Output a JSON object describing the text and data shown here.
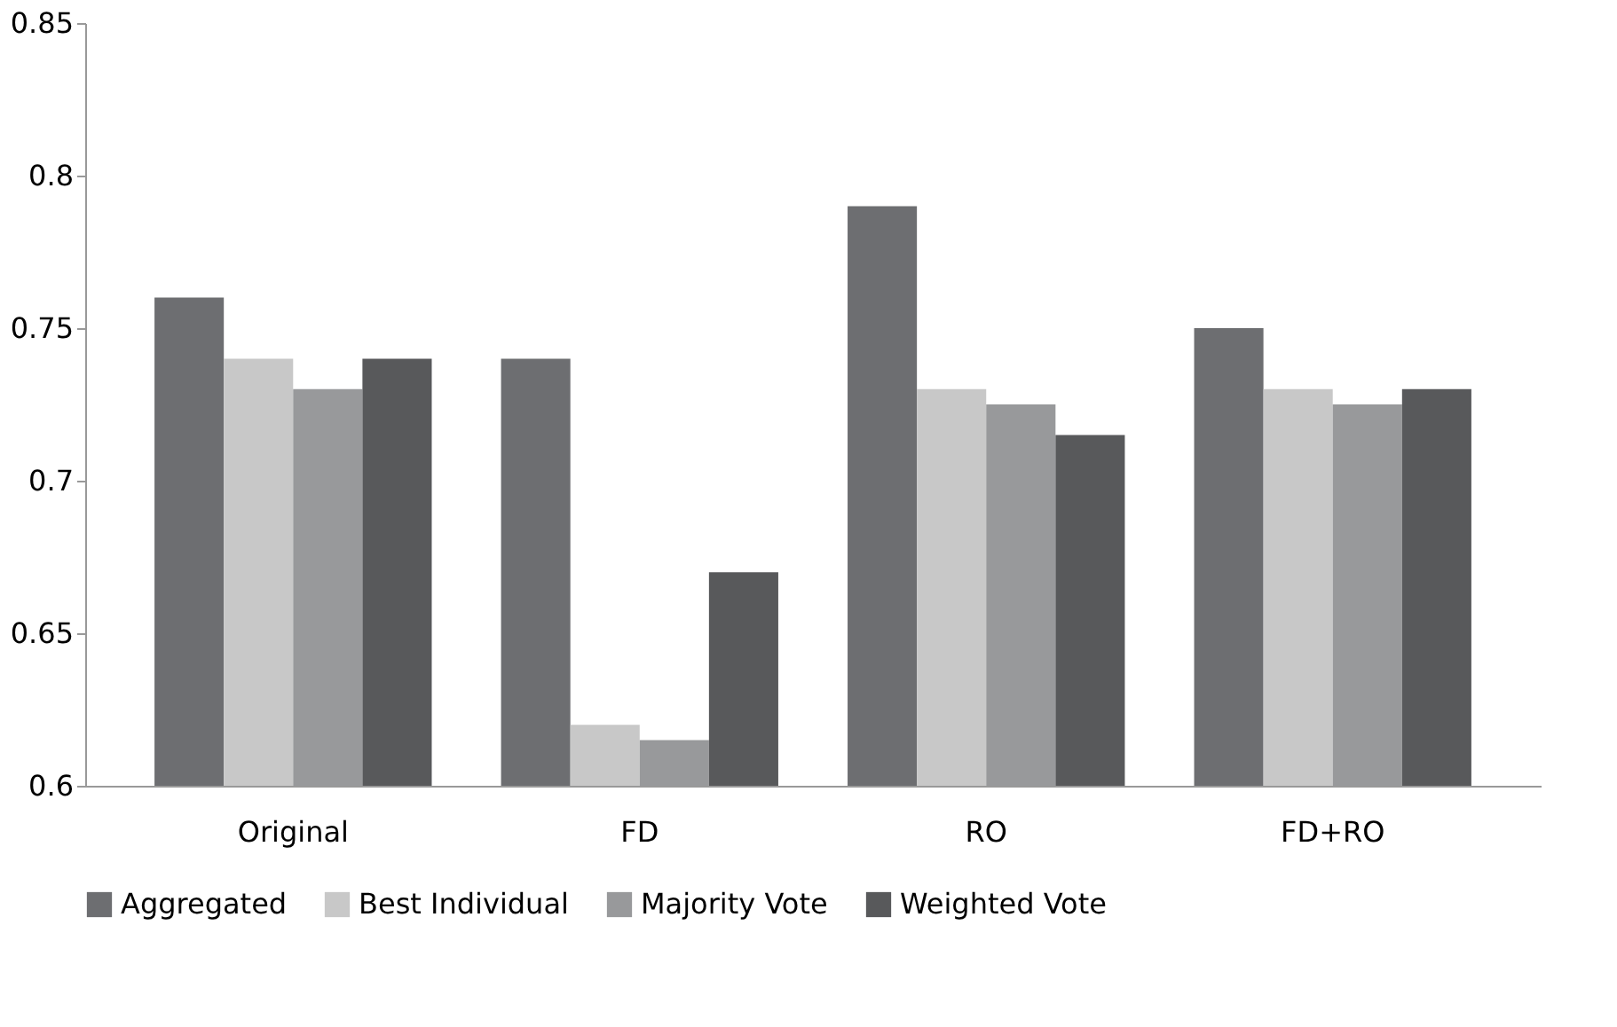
{
  "chart_data": {
    "type": "bar",
    "categories": [
      "Original",
      "FD",
      "RO",
      "FD+RO"
    ],
    "series": [
      {
        "name": "Aggregated",
        "color": "#6d6e71",
        "values": [
          0.76,
          0.74,
          0.79,
          0.75
        ]
      },
      {
        "name": "Best Individual",
        "color": "#c8c8c8",
        "values": [
          0.74,
          0.62,
          0.73,
          0.73
        ]
      },
      {
        "name": "Majority Vote",
        "color": "#98999b",
        "values": [
          0.73,
          0.615,
          0.725,
          0.725
        ]
      },
      {
        "name": "Weighted Vote",
        "color": "#58595b",
        "values": [
          0.74,
          0.67,
          0.715,
          0.73
        ]
      }
    ],
    "ylim": [
      0.6,
      0.85
    ],
    "yticks": [
      0.6,
      0.65,
      0.7,
      0.75,
      0.8,
      0.85
    ],
    "grid": false,
    "legend": "bottom"
  }
}
